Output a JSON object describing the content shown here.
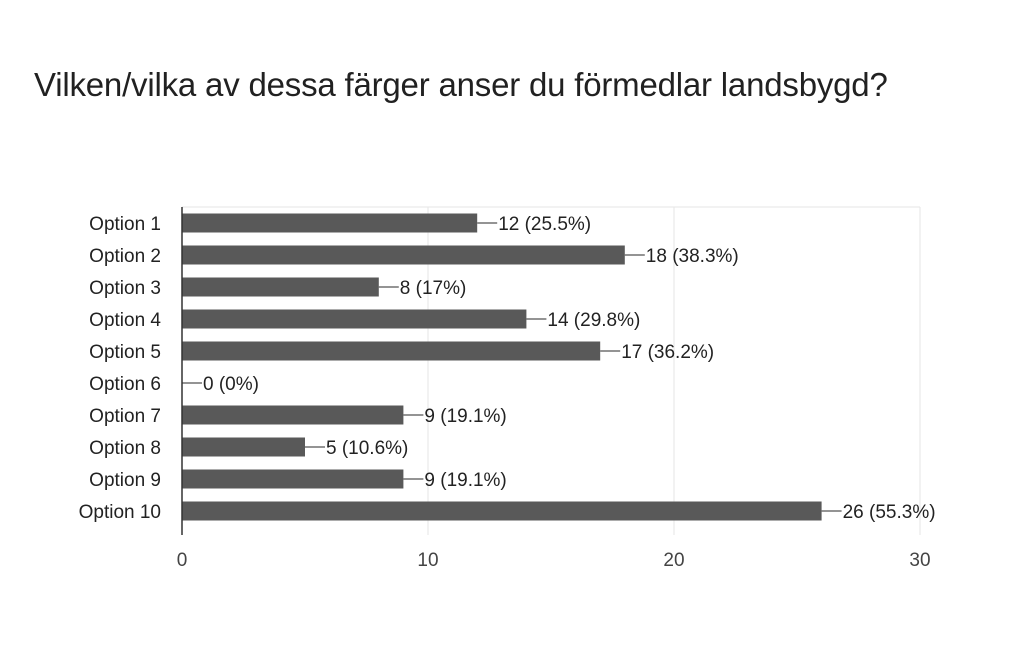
{
  "chart_data": {
    "type": "bar",
    "orientation": "horizontal",
    "title": "Vilken/vilka av dessa färger anser du förmedlar landsbygd?",
    "categories": [
      "Option 1",
      "Option 2",
      "Option 3",
      "Option 4",
      "Option 5",
      "Option 6",
      "Option 7",
      "Option 8",
      "Option 9",
      "Option 10"
    ],
    "values": [
      12,
      18,
      8,
      14,
      17,
      0,
      9,
      5,
      9,
      26
    ],
    "data_labels": [
      "12 (25.5%)",
      "18 (38.3%)",
      "8 (17%)",
      "14 (29.8%)",
      "17 (36.2%)",
      "0 (0%)",
      "9 (19.1%)",
      "5 (10.6%)",
      "9 (19.1%)",
      "26 (55.3%)"
    ],
    "xlim": [
      0,
      30
    ],
    "xticks": [
      0,
      10,
      20,
      30
    ],
    "grid": true,
    "colors": {
      "bar": "#595959",
      "grid": "#e6e6e6",
      "axis": "#333333",
      "leader": "#555555"
    }
  }
}
